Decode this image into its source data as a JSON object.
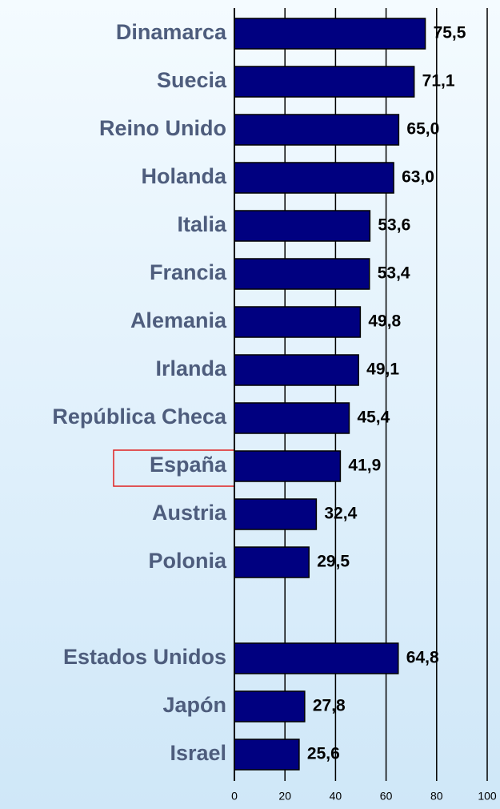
{
  "chart_data": {
    "type": "bar",
    "orientation": "horizontal",
    "categories": [
      "Dinamarca",
      "Suecia",
      "Reino Unido",
      "Holanda",
      "Italia",
      "Francia",
      "Alemania",
      "Irlanda",
      "República Checa",
      "España",
      "Austria",
      "Polonia",
      null,
      "Estados Unidos",
      "Japón",
      "Israel"
    ],
    "values": [
      75.5,
      71.1,
      65.0,
      63.0,
      53.6,
      53.4,
      49.8,
      49.1,
      45.4,
      41.9,
      32.4,
      29.5,
      null,
      64.8,
      27.8,
      25.6
    ],
    "value_labels": [
      "75,5",
      "71,1",
      "65,0",
      "63,0",
      "53,6",
      "53,4",
      "49,8",
      "49,1",
      "45,4",
      "41,9",
      "32,4",
      "29,5",
      null,
      "64,8",
      "27,8",
      "25,6"
    ],
    "color": "#000080",
    "xlim": [
      0,
      100
    ],
    "xticks": [
      0,
      20,
      40,
      60,
      80,
      100
    ],
    "grid": true
  }
}
